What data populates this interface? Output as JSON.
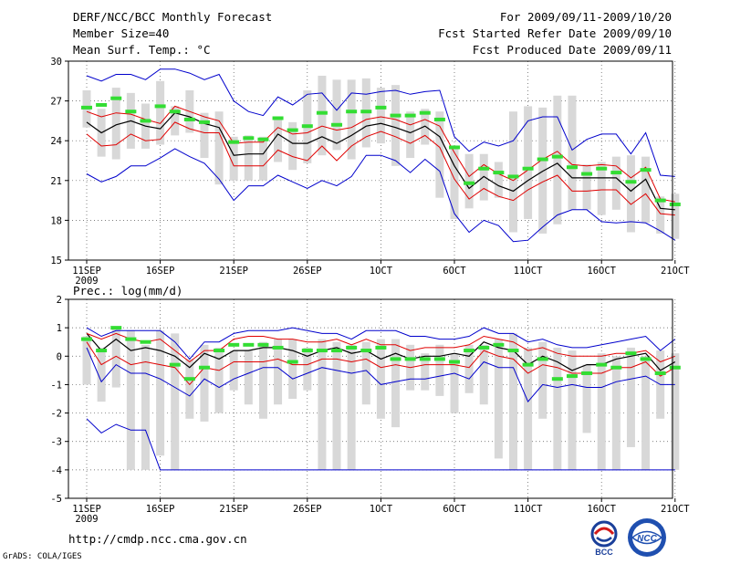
{
  "header": {
    "title": "DERF/NCC/BCC Monthly Forecast",
    "member_size": "Member Size=40",
    "variable": "Mean Surf. Temp.: °C",
    "period": "For 2009/09/11-2009/10/20",
    "started": "Fcst Started Refer Date 2009/09/10",
    "produced": "Fcst Produced Date 2009/09/11"
  },
  "footer": {
    "url": "http://cmdp.ncc.cma.gov.cn",
    "grads": "GrADS: COLA/IGES",
    "logo_bcc": "BCC",
    "logo_ncc": "NCC"
  },
  "colors": {
    "mean": "#000000",
    "spread": "#e00000",
    "envelope": "#0000cc",
    "obs": "#33dd33",
    "range": "#d8d8d8",
    "grid": "#555555"
  },
  "chart_data": [
    {
      "type": "line",
      "title": "Mean Surf. Temp.: °C",
      "x_start_day": 1,
      "x_ticks": [
        1,
        6,
        11,
        16,
        21,
        26,
        31,
        36,
        41
      ],
      "x_tick_labels": [
        "11SEP",
        "16SEP",
        "21SEP",
        "26SEP",
        "1OCT",
        "6OCT",
        "11OCT",
        "16OCT",
        "21OCT"
      ],
      "x_year_label": "2009",
      "ylim": [
        15,
        30
      ],
      "y_ticks": [
        15,
        18,
        21,
        24,
        27,
        30
      ],
      "series": [
        {
          "name": "ensemble mean",
          "values": [
            25.4,
            24.6,
            25.2,
            25.5,
            25.1,
            24.9,
            26.1,
            25.8,
            25.3,
            25.0,
            22.9,
            23.0,
            23.0,
            24.5,
            23.8,
            23.8,
            24.3,
            23.8,
            24.4,
            25.1,
            25.3,
            25.0,
            24.6,
            25.1,
            24.3,
            22.1,
            20.4,
            21.3,
            20.6,
            20.2,
            21.0,
            21.7,
            22.3,
            21.2,
            21.2,
            21.2,
            21.2,
            20.2,
            21.1,
            18.9,
            18.8
          ]
        },
        {
          "name": "mean + 1 std",
          "values": [
            26.2,
            25.8,
            26.1,
            26.0,
            25.6,
            25.3,
            26.6,
            26.2,
            25.8,
            25.5,
            23.8,
            23.9,
            23.9,
            25.0,
            24.5,
            24.6,
            25.1,
            24.8,
            25.0,
            25.6,
            25.8,
            25.6,
            25.2,
            25.6,
            25.1,
            23.1,
            21.3,
            22.2,
            21.5,
            21.0,
            21.8,
            22.6,
            23.2,
            22.2,
            22.1,
            22.2,
            22.1,
            21.2,
            22.0,
            19.6,
            19.4
          ]
        },
        {
          "name": "mean - 1 std",
          "values": [
            24.5,
            23.6,
            23.7,
            24.5,
            24.0,
            24.1,
            25.4,
            24.9,
            24.6,
            24.6,
            22.1,
            22.1,
            22.1,
            23.3,
            22.8,
            22.5,
            23.6,
            22.5,
            23.6,
            24.3,
            24.7,
            24.3,
            23.8,
            24.4,
            23.5,
            21.1,
            19.6,
            20.4,
            19.8,
            19.5,
            20.3,
            20.9,
            21.4,
            20.2,
            20.2,
            20.3,
            20.3,
            19.2,
            20.0,
            18.5,
            18.4
          ]
        },
        {
          "name": "ensemble max",
          "values": [
            28.9,
            28.5,
            29.0,
            29.0,
            28.6,
            29.4,
            29.4,
            29.1,
            28.6,
            29.0,
            27.0,
            26.2,
            25.9,
            27.3,
            26.7,
            27.5,
            27.6,
            26.3,
            27.6,
            27.5,
            27.7,
            27.8,
            27.5,
            27.7,
            27.8,
            24.3,
            23.2,
            23.9,
            23.6,
            24.0,
            25.5,
            25.8,
            25.8,
            23.3,
            24.1,
            24.5,
            24.5,
            23.0,
            24.6,
            21.4,
            21.3
          ]
        },
        {
          "name": "ensemble min",
          "values": [
            21.5,
            20.9,
            21.3,
            22.1,
            22.1,
            22.7,
            23.4,
            22.8,
            22.3,
            21.1,
            19.5,
            20.6,
            20.6,
            21.4,
            20.9,
            20.4,
            21.0,
            20.6,
            21.3,
            22.9,
            22.9,
            22.5,
            21.6,
            22.6,
            21.7,
            18.5,
            17.1,
            18.0,
            17.6,
            16.4,
            16.5,
            17.5,
            18.4,
            18.8,
            18.8,
            17.9,
            17.8,
            17.9,
            17.8,
            17.2,
            16.5
          ]
        },
        {
          "name": "observed",
          "values": [
            26.5,
            26.7,
            27.2,
            26.2,
            25.5,
            26.6,
            26.2,
            25.6,
            25.4,
            null,
            23.9,
            24.2,
            24.1,
            25.7,
            24.8,
            25.1,
            26.1,
            25.2,
            26.2,
            26.2,
            26.5,
            25.9,
            25.9,
            26.1,
            25.6,
            23.5,
            20.8,
            21.9,
            21.6,
            21.3,
            21.9,
            22.6,
            22.8,
            22.0,
            21.5,
            21.9,
            21.6,
            20.9,
            21.8,
            19.5,
            19.2
          ]
        }
      ],
      "range_bars": {
        "max": [
          27.8,
          26.4,
          28.0,
          27.6,
          26.8,
          28.5,
          26.6,
          27.8,
          26.1,
          26.2,
          24.3,
          24.4,
          24.3,
          25.8,
          25.4,
          27.8,
          28.9,
          28.6,
          28.6,
          28.7,
          28.0,
          28.2,
          26.2,
          26.4,
          26.2,
          23.6,
          23.0,
          23.0,
          22.4,
          26.2,
          26.6,
          26.5,
          27.4,
          27.4,
          22.2,
          22.4,
          22.8,
          22.9,
          22.8,
          19.8,
          20.0
        ],
        "min": [
          25.0,
          22.8,
          22.6,
          23.4,
          23.4,
          23.7,
          24.4,
          24.6,
          22.7,
          20.7,
          21.0,
          21.0,
          21.0,
          22.4,
          21.8,
          22.3,
          22.9,
          23.3,
          22.6,
          23.5,
          23.8,
          22.1,
          22.7,
          23.7,
          19.7,
          18.1,
          18.9,
          19.5,
          19.7,
          17.1,
          18.1,
          17.0,
          17.7,
          18.8,
          18.8,
          18.4,
          18.8,
          17.1,
          17.8,
          17.0,
          16.6
        ]
      }
    },
    {
      "type": "line",
      "title": "Prec.: log(mm/d)",
      "x_start_day": 1,
      "x_ticks": [
        1,
        6,
        11,
        16,
        21,
        26,
        31,
        36,
        41
      ],
      "x_tick_labels": [
        "11SEP",
        "16SEP",
        "21SEP",
        "26SEP",
        "1OCT",
        "6OCT",
        "11OCT",
        "16OCT",
        "21OCT"
      ],
      "x_year_label": "2009",
      "ylim": [
        -5,
        2
      ],
      "y_ticks": [
        -5,
        -4,
        -3,
        -2,
        -1,
        0,
        1,
        2
      ],
      "series": [
        {
          "name": "ensemble mean",
          "values": [
            0.8,
            0.2,
            0.6,
            0.2,
            0.3,
            0.2,
            0.0,
            -0.4,
            0.1,
            -0.1,
            0.2,
            0.2,
            0.3,
            0.3,
            0.2,
            0.0,
            0.2,
            0.3,
            0.1,
            0.2,
            -0.1,
            0.1,
            -0.1,
            0.0,
            0.0,
            0.1,
            0.0,
            0.5,
            0.3,
            0.2,
            -0.3,
            0.0,
            -0.2,
            -0.5,
            -0.3,
            -0.3,
            -0.1,
            0.0,
            0.1,
            -0.5,
            -0.2
          ]
        },
        {
          "name": "mean + 1 std",
          "values": [
            0.8,
            0.6,
            0.8,
            0.6,
            0.5,
            0.6,
            0.2,
            -0.2,
            0.2,
            0.2,
            0.6,
            0.7,
            0.7,
            0.6,
            0.6,
            0.5,
            0.5,
            0.6,
            0.4,
            0.6,
            0.4,
            0.4,
            0.2,
            0.3,
            0.3,
            0.3,
            0.4,
            0.7,
            0.6,
            0.5,
            0.2,
            0.3,
            0.1,
            0.0,
            0.0,
            0.0,
            0.1,
            0.1,
            0.2,
            -0.2,
            0.0
          ]
        },
        {
          "name": "mean - 1 std",
          "values": [
            0.5,
            -0.3,
            0.0,
            -0.3,
            -0.2,
            -0.3,
            -0.4,
            -1.0,
            -0.4,
            -0.5,
            -0.2,
            -0.2,
            -0.2,
            -0.1,
            -0.3,
            -0.3,
            -0.1,
            -0.1,
            -0.2,
            -0.1,
            -0.4,
            -0.3,
            -0.4,
            -0.3,
            -0.3,
            -0.3,
            -0.4,
            0.2,
            0.0,
            -0.1,
            -0.6,
            -0.3,
            -0.4,
            -0.6,
            -0.6,
            -0.6,
            -0.4,
            -0.4,
            -0.2,
            -0.7,
            -0.4
          ]
        },
        {
          "name": "ensemble min (lower envelope)",
          "values": [
            0.3,
            -0.9,
            -0.3,
            -0.6,
            -0.6,
            -0.8,
            -1.1,
            -1.4,
            -0.8,
            -1.1,
            -0.8,
            -0.6,
            -0.4,
            -0.4,
            -0.8,
            -0.6,
            -0.4,
            -0.5,
            -0.6,
            -0.5,
            -1.0,
            -0.9,
            -0.8,
            -0.8,
            -0.7,
            -0.6,
            -0.8,
            -0.2,
            -0.4,
            -0.4,
            -1.6,
            -1.0,
            -1.1,
            -1.0,
            -1.1,
            -1.1,
            -0.9,
            -0.8,
            -0.7,
            -1.0,
            -1.0
          ]
        },
        {
          "name": "ensemble max",
          "values": [
            1.0,
            0.7,
            0.9,
            0.9,
            0.9,
            0.9,
            0.5,
            -0.1,
            0.5,
            0.5,
            0.8,
            0.9,
            0.9,
            0.9,
            1.0,
            0.9,
            0.8,
            0.8,
            0.6,
            0.9,
            0.9,
            0.9,
            0.7,
            0.7,
            0.6,
            0.6,
            0.7,
            1.0,
            0.8,
            0.8,
            0.5,
            0.6,
            0.4,
            0.3,
            0.3,
            0.4,
            0.5,
            0.6,
            0.7,
            0.2,
            0.6
          ]
        },
        {
          "name": "ensemble min (bottom)",
          "values": [
            -2.2,
            -2.7,
            -2.4,
            -2.6,
            -2.6,
            -4.0,
            -4.0,
            -4.0,
            -4.0,
            -4.0,
            -4.0,
            -4.0,
            -4.0,
            -4.0,
            -4.0,
            -4.0,
            -4.0,
            -4.0,
            -4.0,
            -4.0,
            -4.0,
            -4.0,
            -4.0,
            -4.0,
            -4.0,
            -4.0,
            -4.0,
            -4.0,
            -4.0,
            -4.0,
            -4.0,
            -4.0,
            -4.0,
            -4.0,
            -4.0,
            -4.0,
            -4.0,
            -4.0,
            -4.0,
            -4.0,
            -4.0
          ]
        },
        {
          "name": "observed",
          "values": [
            0.6,
            0.2,
            1.0,
            0.6,
            0.5,
            null,
            -0.3,
            -0.8,
            -0.4,
            0.2,
            0.4,
            0.4,
            0.4,
            0.3,
            -0.2,
            0.2,
            0.2,
            0.2,
            0.3,
            0.2,
            0.3,
            -0.1,
            -0.1,
            -0.1,
            -0.1,
            -0.2,
            0.2,
            0.3,
            0.4,
            0.2,
            -0.3,
            -0.1,
            -0.8,
            -0.7,
            -0.6,
            -0.3,
            -0.4,
            0.1,
            -0.1,
            -0.6,
            -0.4
          ]
        }
      ],
      "range_bars": {
        "max": [
          0.7,
          0.3,
          1.0,
          0.9,
          0.4,
          0.9,
          0.8,
          -0.1,
          0.4,
          0.3,
          0.2,
          0.2,
          0.5,
          0.6,
          0.6,
          0.3,
          0.6,
          0.5,
          0.4,
          0.5,
          0.6,
          0.6,
          0.4,
          0.1,
          0.4,
          0.1,
          0.4,
          0.4,
          0.6,
          0.8,
          0.3,
          0.5,
          0.3,
          0.2,
          -0.3,
          0.1,
          0.0,
          0.3,
          0.0,
          0.2,
          0.1
        ],
        "min": [
          -1.0,
          -1.6,
          -1.1,
          -4.0,
          -4.0,
          -3.5,
          -4.0,
          -2.2,
          -2.3,
          -2.0,
          -1.2,
          -1.7,
          -2.2,
          -1.7,
          -1.5,
          -1.2,
          -4.0,
          -4.0,
          -4.0,
          -1.7,
          -2.2,
          -2.5,
          -1.2,
          -1.2,
          -1.4,
          -2.0,
          -1.3,
          -1.7,
          -3.6,
          -4.0,
          -4.0,
          -2.2,
          -4.0,
          -4.0,
          -2.7,
          -4.0,
          -4.0,
          -3.2,
          -4.0,
          -2.2,
          -4.0
        ]
      }
    }
  ]
}
